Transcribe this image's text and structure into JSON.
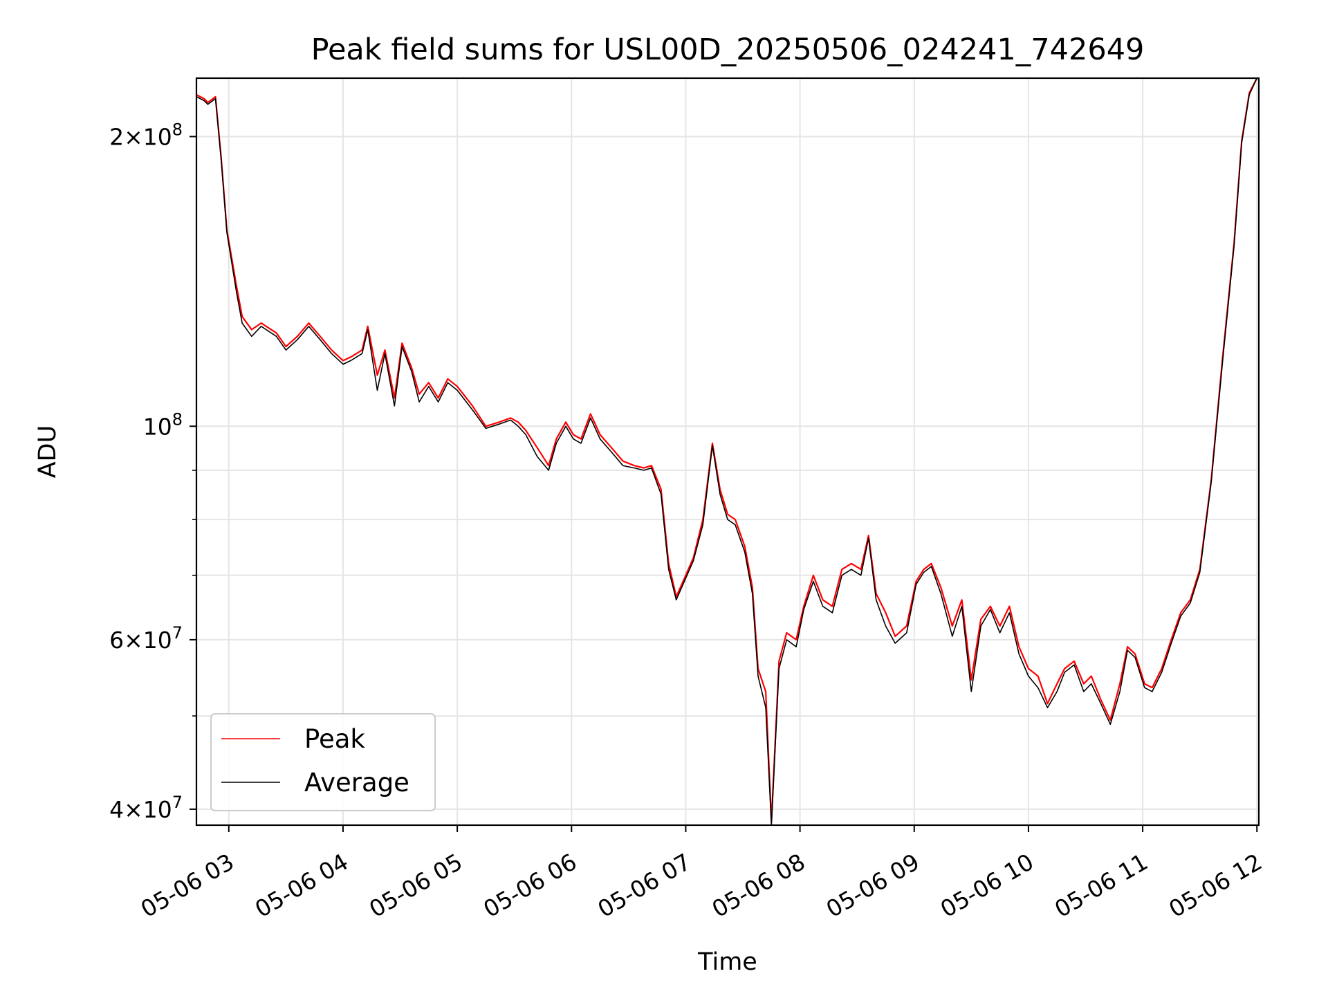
{
  "chart_data": {
    "type": "line",
    "title": "Peak field sums for USL00D_20250506_024241_742649",
    "xlabel": "Time",
    "ylabel": "ADU",
    "xscale": "time",
    "yscale": "log",
    "xlim": [
      "05-06 02:43",
      "05-06 12:01"
    ],
    "ylim": [
      38500000,
      230000000
    ],
    "grid": true,
    "legend_position": "lower-left",
    "x_ticks": [
      "05-06 03",
      "05-06 04",
      "05-06 05",
      "05-06 06",
      "05-06 07",
      "05-06 08",
      "05-06 09",
      "05-06 10",
      "05-06 11",
      "05-06 12"
    ],
    "y_major_ticks": [
      {
        "value": 40000000,
        "mantissa": "4",
        "exponent": "7"
      },
      {
        "value": 60000000,
        "mantissa": "6",
        "exponent": "7"
      },
      {
        "value": 100000000,
        "mantissa": "",
        "exponent": "8"
      },
      {
        "value": 200000000,
        "mantissa": "2",
        "exponent": "8"
      }
    ],
    "y_minor_gridlines": [
      50000000,
      70000000,
      80000000,
      90000000
    ],
    "series": [
      {
        "name": "Peak",
        "color": "#ff0000",
        "x": [
          "05-06 02:43",
          "05-06 02:47",
          "05-06 02:49",
          "05-06 02:53",
          "05-06 02:56",
          "05-06 02:59",
          "05-06 03:04",
          "05-06 03:07",
          "05-06 03:12",
          "05-06 03:17",
          "05-06 03:25",
          "05-06 03:30",
          "05-06 03:36",
          "05-06 03:42",
          "05-06 03:48",
          "05-06 03:54",
          "05-06 04:00",
          "05-06 04:04",
          "05-06 04:10",
          "05-06 04:13",
          "05-06 04:18",
          "05-06 04:22",
          "05-06 04:27",
          "05-06 04:31",
          "05-06 04:36",
          "05-06 04:40",
          "05-06 04:45",
          "05-06 04:50",
          "05-06 04:55",
          "05-06 05:00",
          "05-06 05:08",
          "05-06 05:15",
          "05-06 05:22",
          "05-06 05:28",
          "05-06 05:32",
          "05-06 05:36",
          "05-06 05:42",
          "05-06 05:48",
          "05-06 05:52",
          "05-06 05:57",
          "05-06 06:01",
          "05-06 06:05",
          "05-06 06:10",
          "05-06 06:15",
          "05-06 06:21",
          "05-06 06:27",
          "05-06 06:33",
          "05-06 06:38",
          "05-06 06:42",
          "05-06 06:47",
          "05-06 06:51",
          "05-06 06:55",
          "05-06 07:00",
          "05-06 07:04",
          "05-06 07:09",
          "05-06 07:14",
          "05-06 07:18",
          "05-06 07:22",
          "05-06 07:26",
          "05-06 07:31",
          "05-06 07:35",
          "05-06 07:38",
          "05-06 07:42",
          "05-06 07:45",
          "05-06 07:49",
          "05-06 07:53",
          "05-06 07:58",
          "05-06 08:02",
          "05-06 08:07",
          "05-06 08:12",
          "05-06 08:17",
          "05-06 08:22",
          "05-06 08:27",
          "05-06 08:32",
          "05-06 08:36",
          "05-06 08:40",
          "05-06 08:45",
          "05-06 08:50",
          "05-06 08:56",
          "05-06 09:01",
          "05-06 09:05",
          "05-06 09:09",
          "05-06 09:14",
          "05-06 09:20",
          "05-06 09:25",
          "05-06 09:30",
          "05-06 09:35",
          "05-06 09:40",
          "05-06 09:45",
          "05-06 09:50",
          "05-06 09:55",
          "05-06 10:00",
          "05-06 10:05",
          "05-06 10:10",
          "05-06 10:15",
          "05-06 10:19",
          "05-06 10:24",
          "05-06 10:29",
          "05-06 10:33",
          "05-06 10:38",
          "05-06 10:43",
          "05-06 10:48",
          "05-06 10:52",
          "05-06 10:56",
          "05-06 11:01",
          "05-06 11:05",
          "05-06 11:10",
          "05-06 11:15",
          "05-06 11:20",
          "05-06 11:25",
          "05-06 11:30",
          "05-06 11:36",
          "05-06 11:42",
          "05-06 11:48",
          "05-06 11:52",
          "05-06 11:56",
          "05-06 12:00"
        ],
        "y": [
          221000000,
          219000000,
          217000000,
          220000000,
          190000000,
          160000000,
          140000000,
          130000000,
          126000000,
          128000000,
          125000000,
          121000000,
          124000000,
          128000000,
          124000000,
          120000000,
          117000000,
          118000000,
          120000000,
          127000000,
          113000000,
          120000000,
          107000000,
          122000000,
          115000000,
          108000000,
          111000000,
          107000000,
          112000000,
          110000000,
          105000000,
          100000000,
          101000000,
          102000000,
          101000000,
          99000000,
          95000000,
          91000000,
          97000000,
          101000000,
          98000000,
          97000000,
          103000000,
          98000000,
          95000000,
          92000000,
          91000000,
          90500000,
          91000000,
          86000000,
          72000000,
          66500000,
          70000000,
          73000000,
          80000000,
          96000000,
          86000000,
          81000000,
          80000000,
          75000000,
          68000000,
          56000000,
          53000000,
          38800000,
          57000000,
          61000000,
          60000000,
          65000000,
          70000000,
          66000000,
          65000000,
          71000000,
          72000000,
          71000000,
          77000000,
          67000000,
          64000000,
          60500000,
          62000000,
          69000000,
          71000000,
          72000000,
          68000000,
          62000000,
          66000000,
          54500000,
          63000000,
          65000000,
          62000000,
          65000000,
          59000000,
          56000000,
          55000000,
          51500000,
          54000000,
          56000000,
          57000000,
          54000000,
          55000000,
          52000000,
          49500000,
          54000000,
          59000000,
          58000000,
          54000000,
          53500000,
          56000000,
          60000000,
          64000000,
          66000000,
          71000000,
          88000000,
          118000000,
          155000000,
          198000000,
          222000000,
          230000000
        ]
      },
      {
        "name": "Average",
        "color": "#000000",
        "x": [
          "05-06 02:43",
          "05-06 02:47",
          "05-06 02:49",
          "05-06 02:53",
          "05-06 02:56",
          "05-06 02:59",
          "05-06 03:04",
          "05-06 03:07",
          "05-06 03:12",
          "05-06 03:17",
          "05-06 03:25",
          "05-06 03:30",
          "05-06 03:36",
          "05-06 03:42",
          "05-06 03:48",
          "05-06 03:54",
          "05-06 04:00",
          "05-06 04:04",
          "05-06 04:10",
          "05-06 04:13",
          "05-06 04:18",
          "05-06 04:22",
          "05-06 04:27",
          "05-06 04:31",
          "05-06 04:36",
          "05-06 04:40",
          "05-06 04:45",
          "05-06 04:50",
          "05-06 04:55",
          "05-06 05:00",
          "05-06 05:08",
          "05-06 05:15",
          "05-06 05:22",
          "05-06 05:28",
          "05-06 05:32",
          "05-06 05:36",
          "05-06 05:42",
          "05-06 05:48",
          "05-06 05:52",
          "05-06 05:57",
          "05-06 06:01",
          "05-06 06:05",
          "05-06 06:10",
          "05-06 06:15",
          "05-06 06:21",
          "05-06 06:27",
          "05-06 06:33",
          "05-06 06:38",
          "05-06 06:42",
          "05-06 06:47",
          "05-06 06:51",
          "05-06 06:55",
          "05-06 07:00",
          "05-06 07:04",
          "05-06 07:09",
          "05-06 07:14",
          "05-06 07:18",
          "05-06 07:22",
          "05-06 07:26",
          "05-06 07:31",
          "05-06 07:35",
          "05-06 07:38",
          "05-06 07:42",
          "05-06 07:45",
          "05-06 07:49",
          "05-06 07:53",
          "05-06 07:58",
          "05-06 08:02",
          "05-06 08:07",
          "05-06 08:12",
          "05-06 08:17",
          "05-06 08:22",
          "05-06 08:27",
          "05-06 08:32",
          "05-06 08:36",
          "05-06 08:40",
          "05-06 08:45",
          "05-06 08:50",
          "05-06 08:56",
          "05-06 09:01",
          "05-06 09:05",
          "05-06 09:09",
          "05-06 09:14",
          "05-06 09:20",
          "05-06 09:25",
          "05-06 09:30",
          "05-06 09:35",
          "05-06 09:40",
          "05-06 09:45",
          "05-06 09:50",
          "05-06 09:55",
          "05-06 10:00",
          "05-06 10:05",
          "05-06 10:10",
          "05-06 10:15",
          "05-06 10:19",
          "05-06 10:24",
          "05-06 10:29",
          "05-06 10:33",
          "05-06 10:38",
          "05-06 10:43",
          "05-06 10:48",
          "05-06 10:52",
          "05-06 10:56",
          "05-06 11:01",
          "05-06 11:05",
          "05-06 11:10",
          "05-06 11:15",
          "05-06 11:20",
          "05-06 11:25",
          "05-06 11:30",
          "05-06 11:36",
          "05-06 11:42",
          "05-06 11:48",
          "05-06 11:52",
          "05-06 11:56",
          "05-06 12:00"
        ],
        "y": [
          220000000,
          218000000,
          216000000,
          219000000,
          189000000,
          159000000,
          138000000,
          128000000,
          124000000,
          127000000,
          124000000,
          120000000,
          123000000,
          127000000,
          123000000,
          119000000,
          116000000,
          117000000,
          119000000,
          126000000,
          109000000,
          119000000,
          105000000,
          121000000,
          114000000,
          106000000,
          110000000,
          106000000,
          111000000,
          109000000,
          104000000,
          99500000,
          100500000,
          101500000,
          100000000,
          98000000,
          93000000,
          90000000,
          96000000,
          100000000,
          97000000,
          96000000,
          102000000,
          97000000,
          94000000,
          91000000,
          90500000,
          90000000,
          90500000,
          85000000,
          71000000,
          66000000,
          69500000,
          72500000,
          79000000,
          95500000,
          85000000,
          80000000,
          79000000,
          74000000,
          67000000,
          55000000,
          51000000,
          38500000,
          56000000,
          60000000,
          59000000,
          64500000,
          69000000,
          65000000,
          64000000,
          70000000,
          71000000,
          70000000,
          76500000,
          66000000,
          62000000,
          59500000,
          61000000,
          68500000,
          70500000,
          71500000,
          67000000,
          60500000,
          65000000,
          53000000,
          62000000,
          64500000,
          61000000,
          64000000,
          58000000,
          55000000,
          53500000,
          51000000,
          53000000,
          55500000,
          56500000,
          53000000,
          54000000,
          51500000,
          49000000,
          53000000,
          58500000,
          57500000,
          53500000,
          53000000,
          55500000,
          59500000,
          63500000,
          65500000,
          70500000,
          87500000,
          117000000,
          154000000,
          197000000,
          221000000,
          230000000
        ]
      }
    ]
  }
}
